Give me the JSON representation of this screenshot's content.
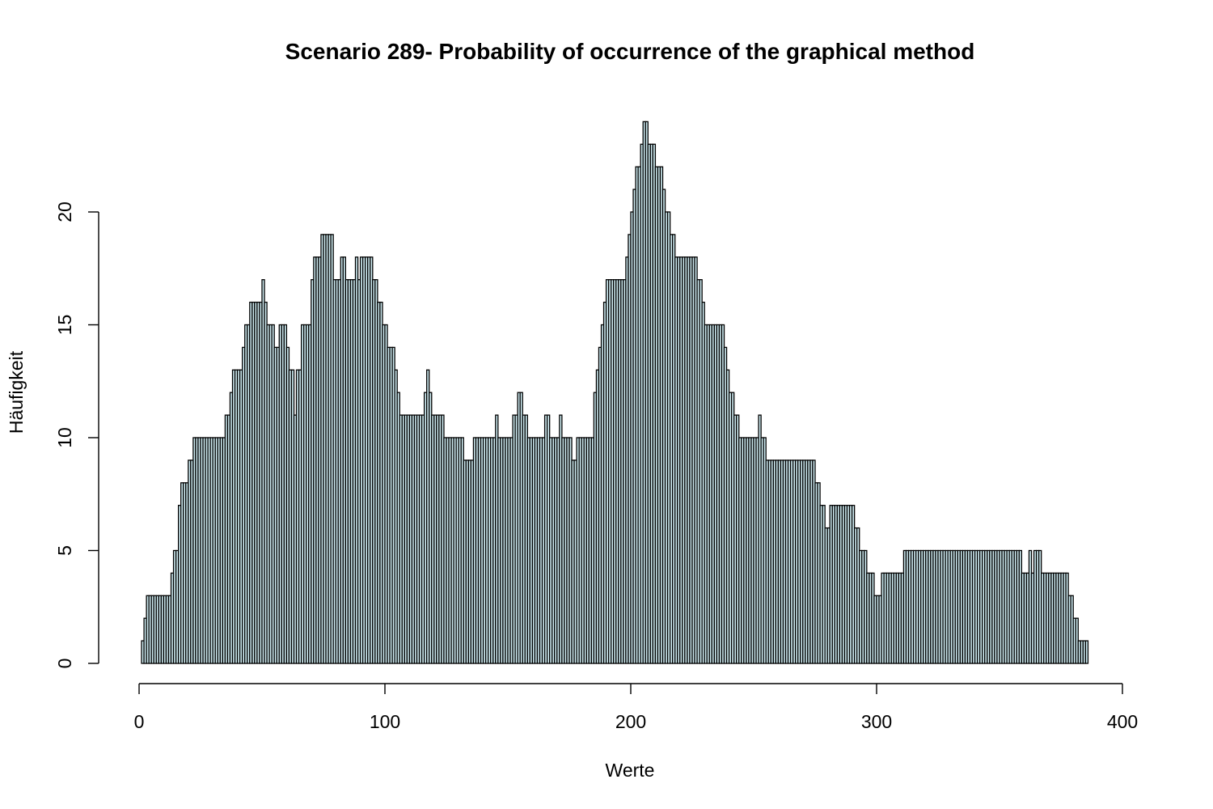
{
  "chart_data": {
    "type": "bar",
    "title": "Scenario 289- Probability of occurrence of the graphical method",
    "xlabel": "Werte",
    "ylabel": "Häufigkeit",
    "x_ticks": [
      0,
      100,
      200,
      300,
      400
    ],
    "y_ticks": [
      0,
      5,
      10,
      15,
      20
    ],
    "xlim": [
      0,
      400
    ],
    "ylim": [
      0,
      24
    ],
    "bin_width": 1,
    "bin_start": 0,
    "bar_fill": "#cdeaf0",
    "bar_stroke": "#000000",
    "grid": false,
    "values": [
      0,
      1,
      2,
      3,
      3,
      3,
      3,
      3,
      3,
      3,
      3,
      3,
      3,
      4,
      5,
      5,
      7,
      8,
      8,
      8,
      9,
      9,
      10,
      10,
      10,
      10,
      10,
      10,
      10,
      10,
      10,
      10,
      10,
      10,
      10,
      11,
      11,
      12,
      13,
      13,
      13,
      13,
      14,
      15,
      15,
      16,
      16,
      16,
      16,
      16,
      17,
      16,
      15,
      15,
      15,
      14,
      14,
      15,
      15,
      15,
      14,
      13,
      13,
      11,
      13,
      13,
      15,
      15,
      15,
      15,
      17,
      18,
      18,
      18,
      19,
      19,
      19,
      19,
      19,
      17,
      17,
      17,
      18,
      18,
      17,
      17,
      17,
      17,
      18,
      17,
      18,
      18,
      18,
      18,
      18,
      17,
      17,
      16,
      16,
      15,
      15,
      14,
      14,
      14,
      13,
      12,
      11,
      11,
      11,
      11,
      11,
      11,
      11,
      11,
      11,
      11,
      12,
      13,
      12,
      11,
      11,
      11,
      11,
      11,
      10,
      10,
      10,
      10,
      10,
      10,
      10,
      10,
      9,
      9,
      9,
      9,
      10,
      10,
      10,
      10,
      10,
      10,
      10,
      10,
      10,
      11,
      10,
      10,
      10,
      10,
      10,
      10,
      11,
      11,
      12,
      12,
      11,
      11,
      10,
      10,
      10,
      10,
      10,
      10,
      10,
      11,
      11,
      10,
      10,
      10,
      10,
      11,
      10,
      10,
      10,
      10,
      9,
      9,
      10,
      10,
      10,
      10,
      10,
      10,
      10,
      12,
      13,
      14,
      15,
      16,
      17,
      17,
      17,
      17,
      17,
      17,
      17,
      17,
      18,
      19,
      20,
      21,
      22,
      22,
      23,
      24,
      24,
      23,
      23,
      23,
      22,
      22,
      22,
      21,
      20,
      20,
      19,
      19,
      18,
      18,
      18,
      18,
      18,
      18,
      18,
      18,
      18,
      17,
      17,
      16,
      15,
      15,
      15,
      15,
      15,
      15,
      15,
      15,
      14,
      13,
      12,
      12,
      11,
      11,
      10,
      10,
      10,
      10,
      10,
      10,
      10,
      10,
      11,
      10,
      10,
      9,
      9,
      9,
      9,
      9,
      9,
      9,
      9,
      9,
      9,
      9,
      9,
      9,
      9,
      9,
      9,
      9,
      9,
      9,
      9,
      8,
      8,
      7,
      7,
      6,
      6,
      7,
      7,
      7,
      7,
      7,
      7,
      7,
      7,
      7,
      7,
      6,
      6,
      5,
      5,
      5,
      4,
      4,
      4,
      3,
      3,
      3,
      4,
      4,
      4,
      4,
      4,
      4,
      4,
      4,
      4,
      5,
      5,
      5,
      5,
      5,
      5,
      5,
      5,
      5,
      5,
      5,
      5,
      5,
      5,
      5,
      5,
      5,
      5,
      5,
      5,
      5,
      5,
      5,
      5,
      5,
      5,
      5,
      5,
      5,
      5,
      5,
      5,
      5,
      5,
      5,
      5,
      5,
      5,
      5,
      5,
      5,
      5,
      5,
      5,
      5,
      5,
      5,
      5,
      4,
      4,
      4,
      5,
      4,
      5,
      5,
      5,
      4,
      4,
      4,
      4,
      4,
      4,
      4,
      4,
      4,
      4,
      4,
      3,
      3,
      2,
      2,
      1,
      1,
      1,
      1,
      0
    ]
  }
}
